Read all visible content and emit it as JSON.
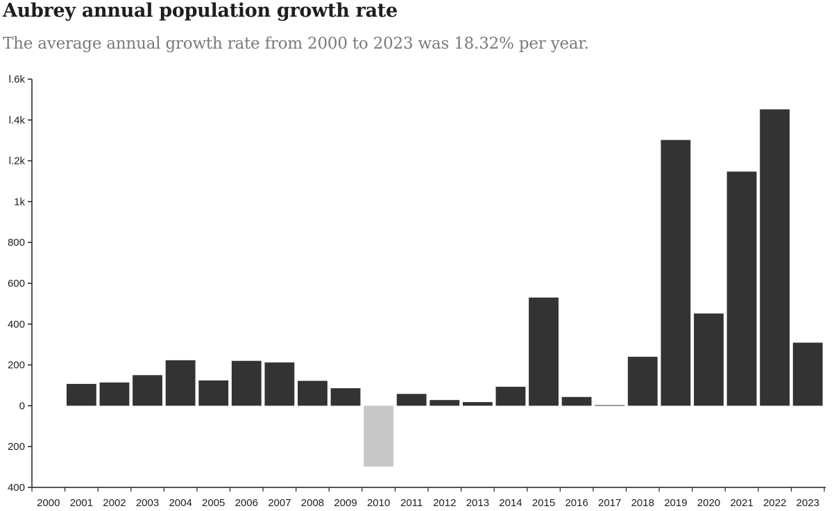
{
  "title": "Aubrey annual population growth rate",
  "subtitle": "The average annual growth rate from 2000 to 2023 was 18.32% per year.",
  "chart_data": {
    "type": "bar",
    "categories": [
      "2000",
      "2001",
      "2002",
      "2003",
      "2004",
      "2005",
      "2006",
      "2007",
      "2008",
      "2009",
      "2010",
      "2011",
      "2012",
      "2013",
      "2014",
      "2015",
      "2016",
      "2017",
      "2018",
      "2019",
      "2020",
      "2021",
      "2022",
      "2023"
    ],
    "values": [
      null,
      107,
      114,
      150,
      223,
      124,
      220,
      212,
      122,
      86,
      -298,
      58,
      28,
      18,
      93,
      530,
      43,
      3,
      240,
      1302,
      452,
      1147,
      1452,
      309
    ],
    "ylim": [
      -400,
      1600
    ],
    "yticks": [
      -400,
      -200,
      0,
      200,
      400,
      600,
      800,
      1000,
      1200,
      1400,
      1600
    ],
    "ytick_labels": [
      "400",
      "200",
      "0",
      "200",
      "400",
      "600",
      "800",
      "1k",
      "l.2k",
      "l.4k",
      "l.6k"
    ],
    "colors": {
      "positive": "#333333",
      "negative": "#c8c8c8",
      "axis": "#1e1e1e"
    },
    "xlabel": "",
    "ylabel": "",
    "grid": false
  }
}
